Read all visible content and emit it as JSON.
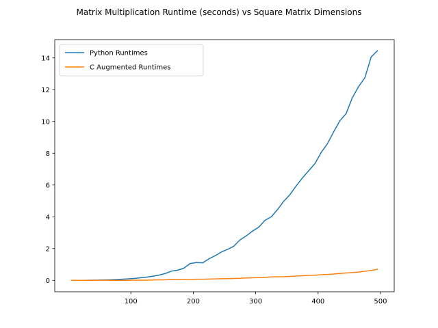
{
  "chart_data": {
    "type": "line",
    "title": "Matrix Multiplication Runtime (seconds) vs Square Matrix Dimensions",
    "xlabel": "",
    "ylabel": "",
    "xlim": [
      -22,
      522
    ],
    "ylim": [
      -0.72,
      15.15
    ],
    "xticks": [
      100,
      200,
      300,
      400,
      500
    ],
    "yticks": [
      0,
      2,
      4,
      6,
      8,
      10,
      12,
      14
    ],
    "grid": false,
    "legend_position": "upper left",
    "x": [
      5,
      15,
      25,
      35,
      45,
      55,
      65,
      75,
      85,
      95,
      105,
      115,
      125,
      135,
      145,
      155,
      165,
      175,
      185,
      195,
      205,
      215,
      225,
      235,
      245,
      255,
      265,
      275,
      285,
      295,
      305,
      315,
      325,
      335,
      345,
      355,
      365,
      375,
      385,
      395,
      405,
      415,
      425,
      435,
      445,
      455,
      465,
      475,
      485,
      495
    ],
    "series": [
      {
        "name": "Python Runtimes",
        "color": "#1f77b4",
        "values": [
          0.0,
          0.0,
          0.0,
          0.01,
          0.01,
          0.02,
          0.03,
          0.05,
          0.07,
          0.09,
          0.12,
          0.16,
          0.2,
          0.26,
          0.33,
          0.43,
          0.58,
          0.64,
          0.77,
          1.06,
          1.12,
          1.1,
          1.35,
          1.55,
          1.78,
          1.95,
          2.15,
          2.55,
          2.8,
          3.1,
          3.35,
          3.78,
          4.0,
          4.45,
          4.98,
          5.4,
          5.95,
          6.45,
          6.9,
          7.35,
          8.05,
          8.6,
          9.35,
          10.05,
          10.5,
          11.5,
          12.2,
          12.75,
          14.05,
          14.45
        ]
      },
      {
        "name": "C Augmented Runtimes",
        "color": "#ff7f0e",
        "values": [
          0.0,
          0.0,
          0.0,
          0.0,
          0.0,
          0.0,
          0.0,
          0.0,
          0.0,
          0.0,
          0.01,
          0.01,
          0.01,
          0.02,
          0.03,
          0.03,
          0.05,
          0.05,
          0.06,
          0.06,
          0.07,
          0.07,
          0.08,
          0.09,
          0.1,
          0.11,
          0.12,
          0.13,
          0.15,
          0.16,
          0.17,
          0.18,
          0.22,
          0.22,
          0.23,
          0.25,
          0.27,
          0.29,
          0.31,
          0.33,
          0.35,
          0.37,
          0.4,
          0.43,
          0.46,
          0.49,
          0.52,
          0.57,
          0.62,
          0.7
        ]
      }
    ]
  }
}
